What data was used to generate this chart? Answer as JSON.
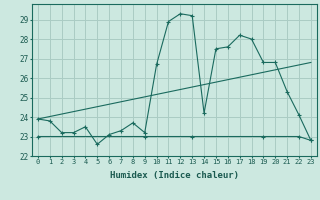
{
  "xlabel": "Humidex (Indice chaleur)",
  "ylabel": "",
  "xlim": [
    -0.5,
    23.5
  ],
  "ylim": [
    22,
    29.8
  ],
  "yticks": [
    22,
    23,
    24,
    25,
    26,
    27,
    28,
    29
  ],
  "xticks": [
    0,
    1,
    2,
    3,
    4,
    5,
    6,
    7,
    8,
    9,
    10,
    11,
    12,
    13,
    14,
    15,
    16,
    17,
    18,
    19,
    20,
    21,
    22,
    23
  ],
  "bg_color": "#cce8e0",
  "grid_color": "#aaccC4",
  "line_color": "#1a6a5e",
  "line1_x": [
    0,
    1,
    2,
    3,
    4,
    5,
    6,
    7,
    8,
    9,
    10,
    11,
    12,
    13,
    14,
    15,
    16,
    17,
    18,
    19,
    20,
    21,
    22,
    23
  ],
  "line1_y": [
    23.9,
    23.8,
    23.2,
    23.2,
    23.5,
    22.6,
    23.1,
    23.3,
    23.7,
    23.2,
    26.7,
    28.9,
    29.3,
    29.2,
    24.2,
    27.5,
    27.6,
    28.2,
    28.0,
    26.8,
    26.8,
    25.3,
    24.1,
    22.8
  ],
  "line2_x": [
    0,
    1,
    2,
    3,
    4,
    5,
    6,
    7,
    8,
    9,
    10,
    11,
    12,
    13,
    14,
    15,
    16,
    17,
    18,
    19,
    20,
    21,
    22,
    23
  ],
  "line2_y": [
    23.0,
    23.0,
    23.0,
    23.0,
    23.0,
    23.0,
    23.0,
    23.0,
    23.0,
    23.0,
    23.0,
    23.0,
    23.0,
    23.0,
    23.0,
    23.0,
    23.0,
    23.0,
    23.0,
    23.0,
    23.0,
    23.0,
    23.0,
    22.8
  ],
  "line2_marker_x": [
    0,
    9,
    13,
    19,
    22,
    23
  ],
  "line2_marker_y": [
    23.0,
    23.0,
    23.0,
    23.0,
    23.0,
    22.8
  ],
  "line3_x": [
    0,
    23
  ],
  "line3_y": [
    23.9,
    26.8
  ]
}
